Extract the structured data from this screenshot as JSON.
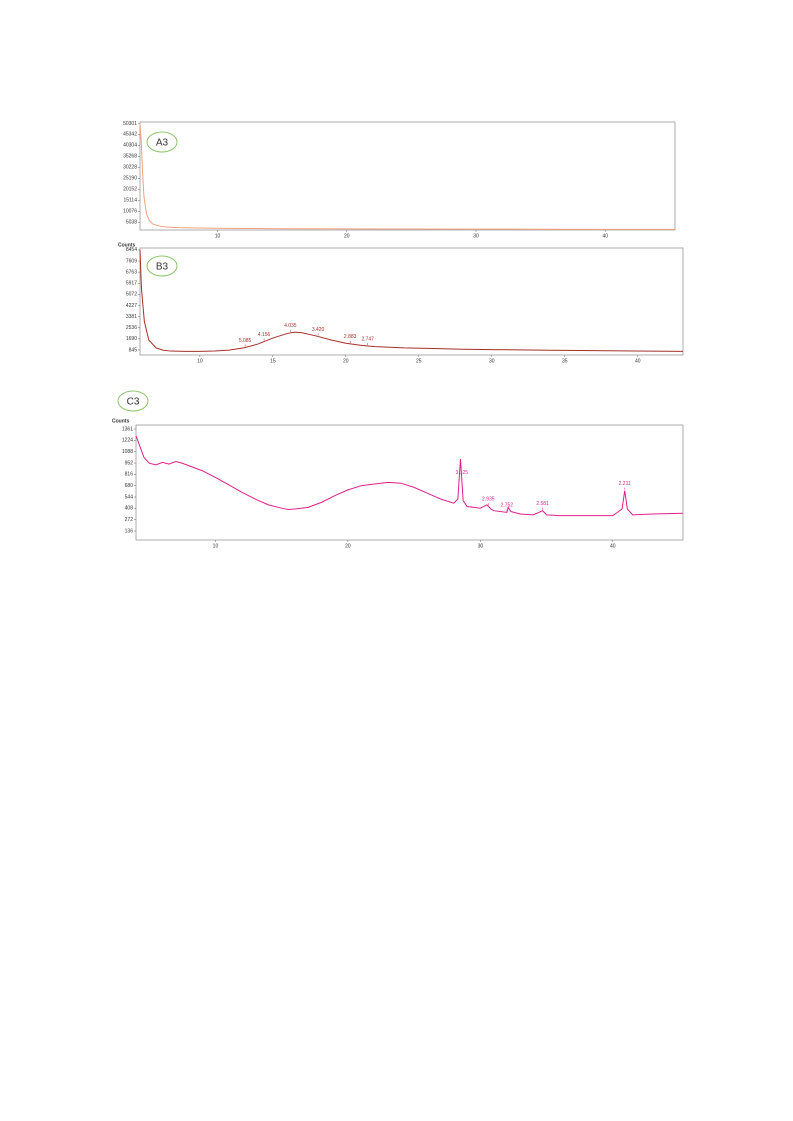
{
  "chart_data": [
    {
      "type": "line",
      "label": "A3",
      "color": "#f2a07e",
      "xlim": [
        4,
        45.4
      ],
      "ylim": [
        1500,
        51000
      ],
      "xticks": [
        10,
        20,
        30,
        40
      ],
      "yticks": [
        5038,
        10076,
        15114,
        20152,
        25190,
        30228,
        35268,
        40304,
        45342,
        50301
      ],
      "x": [
        4,
        4.1,
        4.2,
        4.3,
        4.5,
        4.7,
        5,
        5.5,
        6,
        7,
        8,
        10,
        12,
        15,
        20,
        25,
        30,
        35,
        40,
        45.4
      ],
      "values": [
        50301,
        42000,
        28000,
        17000,
        9000,
        6000,
        4200,
        3300,
        2900,
        2600,
        2450,
        2300,
        2200,
        2100,
        2000,
        1950,
        1900,
        1850,
        1800,
        1780
      ]
    },
    {
      "type": "line",
      "label": "B3",
      "ylabel": "Counts",
      "color": "#a3302a",
      "xlim": [
        5.9,
        43.1
      ],
      "ylim": [
        460,
        8600
      ],
      "xticks": [
        10,
        15,
        20,
        25,
        30,
        35,
        40
      ],
      "yticks": [
        845,
        1690,
        2536,
        3381,
        4227,
        5072,
        5917,
        6763,
        7609,
        8454
      ],
      "x": [
        5.9,
        6.0,
        6.2,
        6.5,
        7,
        7.5,
        8,
        9,
        10,
        11,
        12,
        13,
        14,
        15,
        16,
        16.5,
        17,
        18,
        19,
        20,
        21,
        22,
        24,
        26,
        28,
        30,
        34,
        38,
        43.1
      ],
      "values": [
        8454,
        5500,
        3000,
        1600,
        1000,
        820,
        760,
        740,
        740,
        760,
        830,
        1000,
        1300,
        1750,
        2100,
        2200,
        2150,
        1900,
        1600,
        1350,
        1200,
        1100,
        1000,
        950,
        900,
        870,
        820,
        780,
        740
      ],
      "annotations": [
        {
          "text": "5.085",
          "x": 13.1
        },
        {
          "text": "4.156",
          "x": 14.4
        },
        {
          "text": "4.035",
          "x": 16.2
        },
        {
          "text": "3.420",
          "x": 18.1
        },
        {
          "text": "2.883",
          "x": 20.3
        },
        {
          "text": "2.747",
          "x": 21.5
        }
      ]
    },
    {
      "type": "line",
      "label": "C3",
      "ylabel": "Counts",
      "color": "#e0208a",
      "xlim": [
        4,
        45.3
      ],
      "ylim": [
        28,
        1409
      ],
      "xticks": [
        10,
        20,
        30,
        40
      ],
      "yticks": [
        136,
        272,
        408,
        544,
        680,
        816,
        952,
        1088,
        1224,
        1361
      ],
      "x": [
        4,
        4.3,
        4.6,
        5,
        5.5,
        6,
        6.5,
        7,
        7.5,
        8,
        9,
        10,
        11,
        12,
        13,
        14,
        15,
        15.5,
        16,
        17,
        18,
        19,
        20,
        21,
        22,
        23,
        24,
        25,
        26,
        27,
        28,
        28.3,
        28.5,
        28.7,
        29,
        30,
        30.5,
        30.8,
        31,
        32,
        32.1,
        32.3,
        33,
        34,
        34.7,
        35,
        36,
        38,
        40,
        40.7,
        40.9,
        41.1,
        41.5,
        43,
        45.3
      ],
      "values": [
        1280,
        1150,
        1020,
        950,
        930,
        960,
        940,
        970,
        950,
        920,
        860,
        780,
        690,
        600,
        520,
        450,
        410,
        395,
        400,
        420,
        480,
        560,
        630,
        680,
        700,
        720,
        710,
        660,
        590,
        520,
        470,
        520,
        1000,
        500,
        430,
        410,
        450,
        400,
        380,
        360,
        420,
        370,
        340,
        330,
        380,
        330,
        320,
        320,
        320,
        400,
        620,
        400,
        330,
        340,
        350
      ],
      "annotations": [
        {
          "text": "3.125",
          "x": 28.6
        },
        {
          "text": "2.935",
          "x": 30.6
        },
        {
          "text": "2.752",
          "x": 32.0
        },
        {
          "text": "2.581",
          "x": 34.7
        },
        {
          "text": "2.211",
          "x": 40.9
        }
      ]
    }
  ]
}
